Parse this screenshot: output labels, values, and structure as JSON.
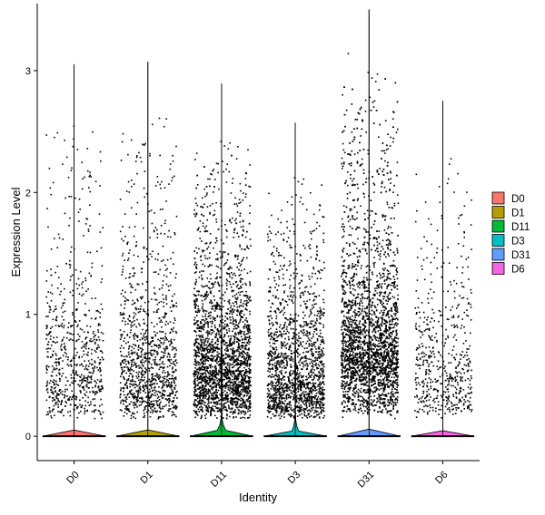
{
  "chart_data": {
    "type": "violin",
    "xlabel": "Identity",
    "ylabel": "Expression Level",
    "categories": [
      "D0",
      "D1",
      "D11",
      "D3",
      "D31",
      "D6"
    ],
    "y_ticks": [
      0,
      1,
      2,
      3
    ],
    "ylim": [
      -0.2,
      3.55
    ],
    "grid": false,
    "legend": {
      "position": "right",
      "entries": [
        "D0",
        "D1",
        "D11",
        "D3",
        "D31",
        "D6"
      ]
    },
    "colors": [
      "#F8766D",
      "#B79F00",
      "#00BA38",
      "#00BFC4",
      "#619CFF",
      "#F564E3"
    ],
    "series": [
      {
        "name": "D0",
        "max": 3.05,
        "n_points": 700,
        "mode": 0.5,
        "bulge_at_zero": 0.0
      },
      {
        "name": "D1",
        "max": 3.07,
        "n_points": 1100,
        "mode": 0.5,
        "bulge_at_zero": 0.0
      },
      {
        "name": "D11",
        "max": 2.89,
        "n_points": 2600,
        "mode": 0.55,
        "bulge_at_zero": 0.25
      },
      {
        "name": "D3",
        "max": 2.57,
        "n_points": 1600,
        "mode": 0.45,
        "bulge_at_zero": 0.18
      },
      {
        "name": "D31",
        "max": 3.5,
        "n_points": 3400,
        "mode": 0.7,
        "bulge_at_zero": 0.0
      },
      {
        "name": "D6",
        "max": 2.75,
        "n_points": 550,
        "mode": 0.5,
        "bulge_at_zero": 0.0
      }
    ]
  }
}
